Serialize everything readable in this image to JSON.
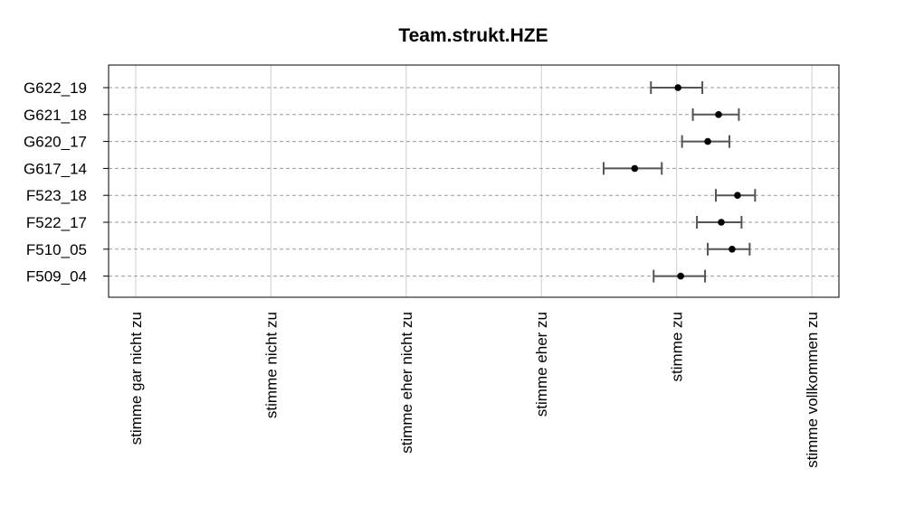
{
  "chart_data": {
    "type": "scatter",
    "title": "Team.strukt.HZE",
    "xlabel": "",
    "ylabel": "",
    "xlim": [
      0.8,
      6.2
    ],
    "x_ticks": [
      {
        "value": 1,
        "label": "stimme gar nicht zu"
      },
      {
        "value": 2,
        "label": "stimme nicht zu"
      },
      {
        "value": 3,
        "label": "stimme eher nicht zu"
      },
      {
        "value": 4,
        "label": "stimme eher zu"
      },
      {
        "value": 5,
        "label": "stimme zu"
      },
      {
        "value": 6,
        "label": "stimme vollkommen zu"
      }
    ],
    "grid": "vertical",
    "series": [
      {
        "categories": [
          "G622_19",
          "G621_18",
          "G620_17",
          "G617_14",
          "F523_18",
          "F522_17",
          "F510_05",
          "F509_04"
        ],
        "mean": [
          5.01,
          5.31,
          5.23,
          4.69,
          5.45,
          5.33,
          5.41,
          5.03
        ],
        "lower": [
          4.81,
          5.12,
          5.04,
          4.46,
          5.29,
          5.15,
          5.23,
          4.83
        ],
        "upper": [
          5.19,
          5.46,
          5.39,
          4.89,
          5.58,
          5.48,
          5.54,
          5.21
        ]
      }
    ]
  }
}
